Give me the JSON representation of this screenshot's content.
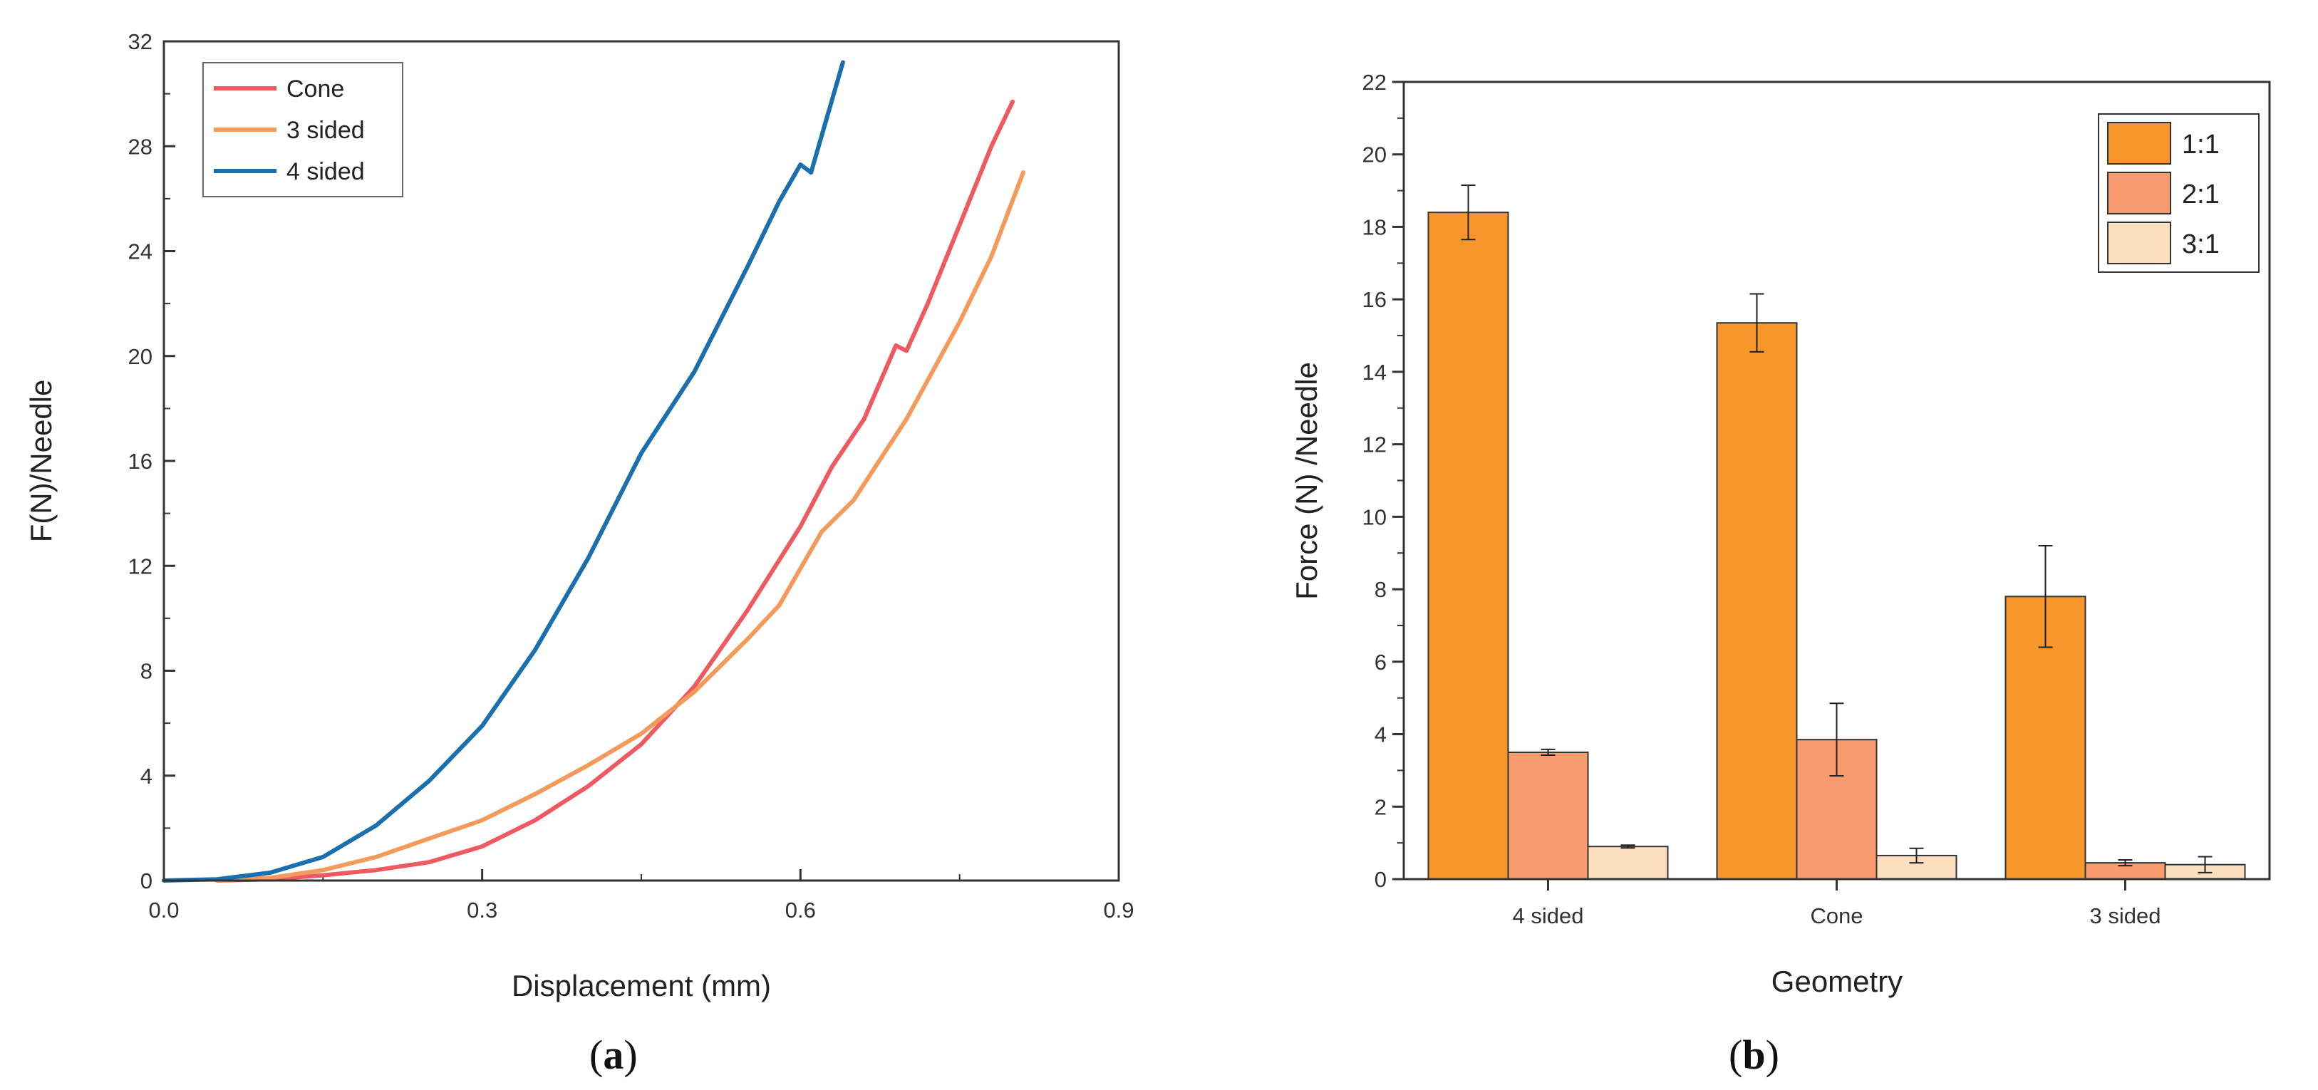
{
  "chart_data": [
    {
      "type": "line",
      "panel_label": "a",
      "xlabel": "Displacement (mm)",
      "ylabel": "F(N)/Needle",
      "xlim": [
        0.0,
        0.9
      ],
      "ylim": [
        0,
        32
      ],
      "xticks": [
        "0.0",
        "0.3",
        "0.6",
        "0.9"
      ],
      "yticks": [
        "0",
        "4",
        "8",
        "12",
        "16",
        "20",
        "24",
        "28",
        "32"
      ],
      "legend_position": "top-left",
      "series": [
        {
          "name": "Cone",
          "color": "#ef5a61",
          "x": [
            0.05,
            0.1,
            0.15,
            0.2,
            0.25,
            0.3,
            0.35,
            0.4,
            0.45,
            0.5,
            0.55,
            0.6,
            0.63,
            0.66,
            0.69,
            0.7,
            0.72,
            0.75,
            0.78,
            0.8
          ],
          "y": [
            0.0,
            0.05,
            0.2,
            0.4,
            0.7,
            1.3,
            2.3,
            3.6,
            5.2,
            7.4,
            10.3,
            13.5,
            15.8,
            17.6,
            20.4,
            20.2,
            22.0,
            25.0,
            28.0,
            29.7
          ]
        },
        {
          "name": "3 sided",
          "color": "#f59a5a",
          "x": [
            0.05,
            0.1,
            0.15,
            0.2,
            0.25,
            0.3,
            0.35,
            0.4,
            0.45,
            0.5,
            0.55,
            0.58,
            0.62,
            0.65,
            0.7,
            0.75,
            0.78,
            0.81
          ],
          "y": [
            0.0,
            0.1,
            0.4,
            0.9,
            1.6,
            2.3,
            3.3,
            4.4,
            5.6,
            7.2,
            9.2,
            10.5,
            13.3,
            14.5,
            17.6,
            21.3,
            23.8,
            27.0
          ]
        },
        {
          "name": "4 sided",
          "color": "#1a6fae",
          "x": [
            0.0,
            0.05,
            0.1,
            0.15,
            0.2,
            0.25,
            0.3,
            0.35,
            0.4,
            0.45,
            0.5,
            0.55,
            0.58,
            0.6,
            0.61,
            0.62,
            0.64
          ],
          "y": [
            0.0,
            0.05,
            0.3,
            0.9,
            2.1,
            3.8,
            5.9,
            8.8,
            12.3,
            16.3,
            19.4,
            23.4,
            25.9,
            27.3,
            27.0,
            28.4,
            31.2
          ]
        }
      ]
    },
    {
      "type": "bar",
      "panel_label": "b",
      "xlabel": "Geometry",
      "ylabel": "Force (N) /Needle",
      "ylim": [
        0,
        22
      ],
      "yticks": [
        "0",
        "2",
        "4",
        "6",
        "8",
        "10",
        "12",
        "14",
        "16",
        "18",
        "20",
        "22"
      ],
      "categories": [
        "4 sided",
        "Cone",
        "3 sided"
      ],
      "legend_position": "top-right",
      "series": [
        {
          "name": "1:1",
          "color": "#f7962b",
          "values": [
            18.4,
            15.35,
            7.8
          ],
          "errors": [
            0.75,
            0.8,
            1.4
          ]
        },
        {
          "name": "2:1",
          "color": "#f89b6e",
          "values": [
            3.5,
            3.85,
            0.45
          ],
          "errors": [
            0.08,
            1.0,
            0.08
          ]
        },
        {
          "name": "3:1",
          "color": "#fce0c0",
          "values": [
            0.9,
            0.65,
            0.4
          ],
          "errors": [
            0.04,
            0.2,
            0.22
          ]
        }
      ]
    }
  ]
}
